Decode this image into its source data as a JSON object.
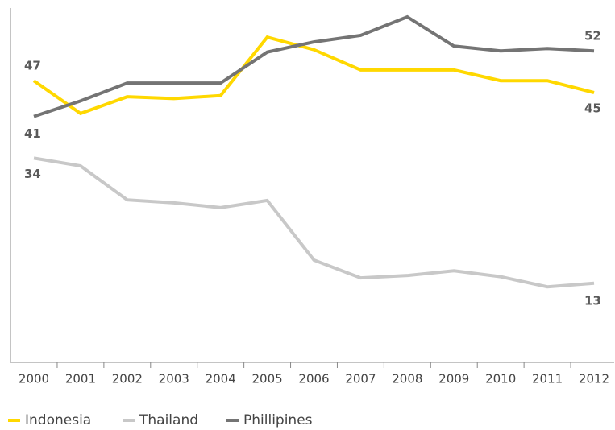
{
  "chart_data": {
    "type": "line",
    "categories": [
      "2000",
      "2001",
      "2002",
      "2003",
      "2004",
      "2005",
      "2006",
      "2007",
      "2008",
      "2009",
      "2010",
      "2011",
      "2012"
    ],
    "series": [
      {
        "name": "Indonesia",
        "color": "#ffd800",
        "values": [
          47,
          41.5,
          44.3,
          44,
          44.5,
          54.3,
          52.2,
          48.8,
          48.8,
          48.8,
          47,
          47,
          45
        ]
      },
      {
        "name": "Thailand",
        "color": "#c8c8c8",
        "values": [
          34,
          32.7,
          27,
          26.5,
          25.7,
          26.9,
          16.9,
          13.9,
          14.3,
          15.1,
          14.1,
          12.4,
          13
        ]
      },
      {
        "name": "Phillipines",
        "color": "#747474",
        "values": [
          41,
          43.6,
          46.6,
          46.6,
          46.6,
          51.8,
          53.5,
          54.6,
          57.7,
          52.8,
          52,
          52.4,
          52
        ]
      }
    ],
    "ylim": [
      0,
      60
    ]
  }
}
